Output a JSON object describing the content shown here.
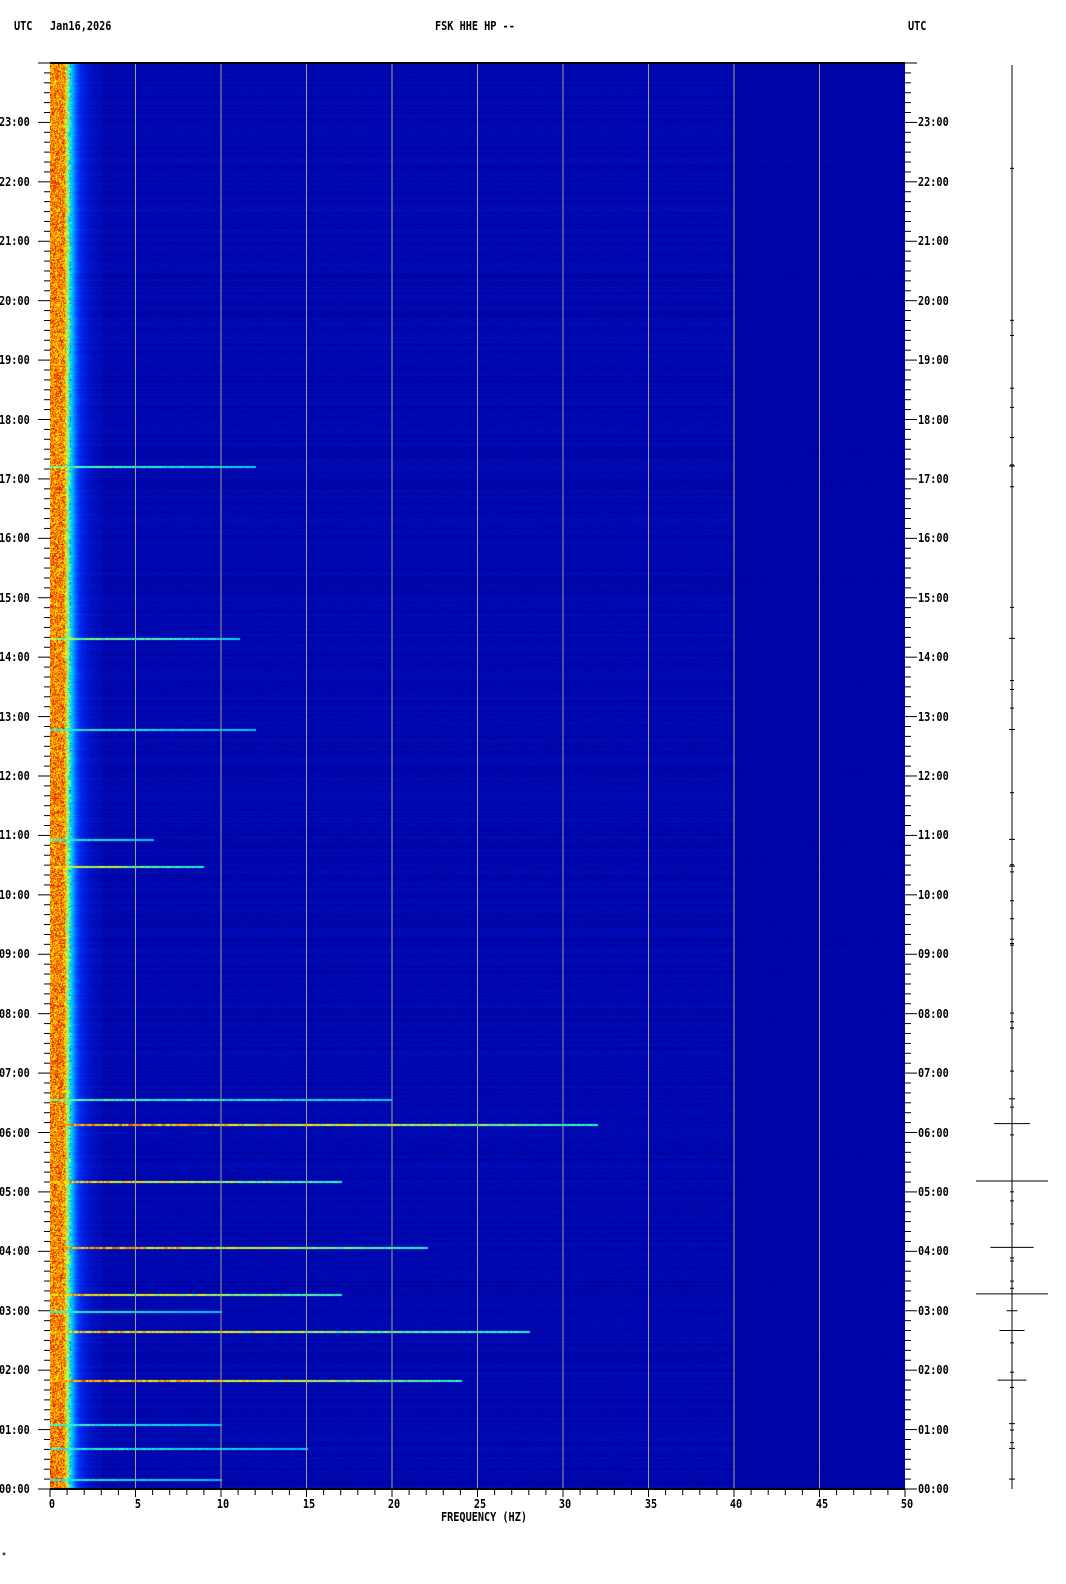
{
  "header": {
    "left_tz": "UTC",
    "date": "Jan16,2026",
    "station": "FSK HHE HP --",
    "right_tz": "UTC"
  },
  "chart_data": {
    "type": "heatmap",
    "title": "FSK HHE HP --",
    "xlabel": "FREQUENCY (HZ)",
    "ylabel": "",
    "xlim": [
      0,
      50
    ],
    "ylim": [
      "00:00",
      "24:00"
    ],
    "x_ticks": [
      "0",
      "5",
      "10",
      "15",
      "20",
      "25",
      "30",
      "35",
      "40",
      "45",
      "50"
    ],
    "x_minor_step_hz": 1,
    "y_ticks": [
      "00:00",
      "01:00",
      "02:00",
      "03:00",
      "04:00",
      "05:00",
      "06:00",
      "07:00",
      "08:00",
      "09:00",
      "10:00",
      "11:00",
      "12:00",
      "13:00",
      "14:00",
      "15:00",
      "16:00",
      "17:00",
      "18:00",
      "19:00",
      "20:00",
      "21:00",
      "22:00",
      "23:00"
    ],
    "y_minor_step_min": 10,
    "gridlines_hz": [
      5,
      10,
      15,
      20,
      25,
      30,
      35,
      40,
      45
    ],
    "colormap": [
      "#0000a0",
      "#0030ff",
      "#00c0ff",
      "#40ffc0",
      "#ffff00",
      "#ff8000",
      "#d00000"
    ],
    "background_color": "#0000aa",
    "low_frequency_band_hz": [
      0,
      1.2
    ],
    "events": [
      {
        "time": "06:09",
        "max_hz": 32,
        "intensity": 1.0,
        "trace_amp": 0.5
      },
      {
        "time": "05:11",
        "max_hz": 17,
        "intensity": 0.9,
        "trace_amp": 1.0
      },
      {
        "time": "04:04",
        "max_hz": 22,
        "intensity": 1.0,
        "trace_amp": 0.6
      },
      {
        "time": "03:17",
        "max_hz": 17,
        "intensity": 0.9,
        "trace_amp": 1.0
      },
      {
        "time": "03:00",
        "max_hz": 10,
        "intensity": 0.4,
        "trace_amp": 0.15
      },
      {
        "time": "02:40",
        "max_hz": 28,
        "intensity": 0.9,
        "trace_amp": 0.35
      },
      {
        "time": "01:50",
        "max_hz": 24,
        "intensity": 1.0,
        "trace_amp": 0.4
      },
      {
        "time": "06:34",
        "max_hz": 20,
        "intensity": 0.5,
        "trace_amp": 0.08
      },
      {
        "time": "10:29",
        "max_hz": 9,
        "intensity": 0.8,
        "trace_amp": 0.08
      },
      {
        "time": "10:56",
        "max_hz": 6,
        "intensity": 0.4,
        "trace_amp": 0.03
      },
      {
        "time": "12:47",
        "max_hz": 12,
        "intensity": 0.4,
        "trace_amp": 0.03
      },
      {
        "time": "14:19",
        "max_hz": 11,
        "intensity": 0.6,
        "trace_amp": 0.08
      },
      {
        "time": "17:13",
        "max_hz": 12,
        "intensity": 0.5,
        "trace_amp": 0.03
      },
      {
        "time": "01:06",
        "max_hz": 10,
        "intensity": 0.4,
        "trace_amp": 0.03
      },
      {
        "time": "00:41",
        "max_hz": 15,
        "intensity": 0.4,
        "trace_amp": 0.03
      },
      {
        "time": "00:10",
        "max_hz": 10,
        "intensity": 0.35,
        "trace_amp": 0.02
      }
    ]
  },
  "footer_mark": "*"
}
